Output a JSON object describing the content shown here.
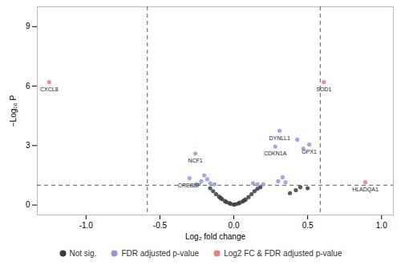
{
  "chart_data": {
    "type": "scatter",
    "x_label": "Log₂ fold change",
    "y_label": "−Log₁₀ P",
    "xlim": [
      -1.33,
      1.08
    ],
    "ylim": [
      -0.5,
      10
    ],
    "xticks": [
      {
        "value": -1,
        "label": "-1.0"
      },
      -0.5,
      {
        "value": 0,
        "label": "0.0"
      },
      0.5,
      {
        "value": 1,
        "label": "1.0"
      }
    ],
    "yticks": [
      0,
      3,
      6,
      9
    ],
    "grid": false,
    "legend": "bottom",
    "reference_lines": {
      "x": [
        -0.585,
        0.585
      ],
      "y": [
        1
      ]
    },
    "series": [
      {
        "name": "Not sig.",
        "color": "#3d3d3d",
        "x": [
          -0.16,
          -0.14,
          -0.12,
          -0.1,
          -0.08,
          -0.06,
          -0.05,
          -0.03,
          -0.02,
          0,
          0.01,
          0.03,
          0.04,
          0.06,
          0.08,
          0.1,
          0.12,
          0.14,
          0.16,
          0.18,
          -0.09,
          0.07,
          0.38,
          0.42,
          0.45,
          0.5
        ],
        "y": [
          0.85,
          0.7,
          0.55,
          0.42,
          0.3,
          0.2,
          0.15,
          0.1,
          0.06,
          0.02,
          0.04,
          0.08,
          0.12,
          0.18,
          0.28,
          0.4,
          0.55,
          0.7,
          0.82,
          0.9,
          0.36,
          0.24,
          0.6,
          0.75,
          0.9,
          0.85
        ],
        "labels": [
          null,
          null,
          null,
          null,
          null,
          null,
          null,
          null,
          null,
          null,
          null,
          null,
          null,
          null,
          null,
          null,
          null,
          null,
          null,
          null,
          null,
          null,
          null,
          null,
          null,
          null
        ]
      },
      {
        "name": "FDR adjusted p-value",
        "color": "#8f9be0",
        "x": [
          -0.26,
          -0.3,
          -0.2,
          -0.18,
          -0.22,
          -0.16,
          -0.25,
          -0.13,
          0.13,
          0.16,
          0.2,
          0.3,
          0.33,
          0.35,
          0.31,
          0.43,
          0.28,
          0.51,
          0.47
        ],
        "y": [
          2.6,
          1.35,
          1.5,
          1.3,
          1.2,
          1.1,
          1.05,
          1.05,
          1.1,
          1.05,
          1.05,
          1.2,
          1.4,
          1.15,
          3.75,
          3.3,
          2.95,
          3.05,
          2.85
        ],
        "labels": [
          "NCF1",
          "CREBBP",
          null,
          null,
          null,
          null,
          null,
          null,
          null,
          null,
          null,
          null,
          null,
          null,
          "DYNLL1",
          null,
          "CDKN1A",
          "GPX1",
          null
        ]
      },
      {
        "name": "Log2 FC & FDR adjusted p-value",
        "color": "#e8807f",
        "x": [
          -1.25,
          0.61,
          0.89
        ],
        "y": [
          6.2,
          6.2,
          1.15
        ],
        "labels": [
          "CXCL8",
          "SOD1",
          "HLADQA1"
        ]
      }
    ]
  }
}
